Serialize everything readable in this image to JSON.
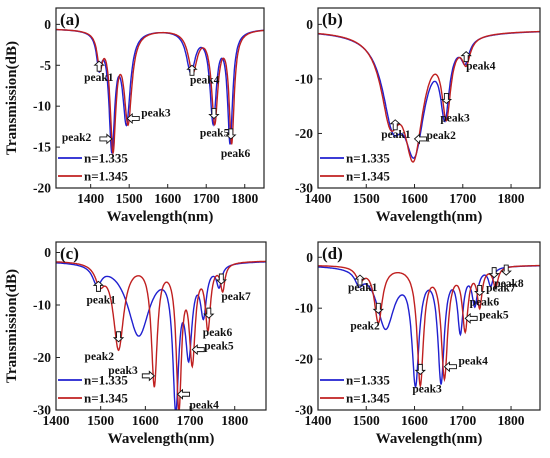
{
  "chart_data": [
    {
      "panel_label": "(a)",
      "type": "line",
      "xlabel": "Wavelength(nm)",
      "ylabel": "Transmission(dB)",
      "xlim": [
        1310,
        1850
      ],
      "ylim": [
        -20,
        2
      ],
      "xticks": [
        1400,
        1500,
        1600,
        1700,
        1800
      ],
      "yticks": [
        0,
        -5,
        -10,
        -15,
        -20
      ],
      "legend": [
        "n=1.335",
        "n=1.345"
      ],
      "legend_position": "bottom-left",
      "series": [
        {
          "name": "n=1.335",
          "color": "#2020d0",
          "baseline": -0.5,
          "dips": [
            [
              1422,
              4.0,
              8
            ],
            [
              1455,
              14.0,
              9
            ],
            [
              1493,
              11.0,
              12
            ],
            [
              1660,
              5.0,
              14
            ],
            [
              1718,
              11.0,
              10
            ],
            [
              1762,
              13.5,
              8
            ]
          ]
        },
        {
          "name": "n=1.345",
          "color": "#c02020",
          "baseline": -0.5,
          "dips": [
            [
              1424,
              4.0,
              8
            ],
            [
              1458,
              14.0,
              9
            ],
            [
              1497,
              11.0,
              12
            ],
            [
              1665,
              5.0,
              14
            ],
            [
              1722,
              11.0,
              10
            ],
            [
              1766,
              13.5,
              8
            ]
          ]
        }
      ],
      "annotations": [
        {
          "text": "peak1",
          "x": 1422,
          "y": -4.5
        },
        {
          "text": "peak2",
          "x": 1455,
          "y": -14.0
        },
        {
          "text": "peak3",
          "x": 1495,
          "y": -11.5
        },
        {
          "text": "peak4",
          "x": 1663,
          "y": -5.0
        },
        {
          "text": "peak5",
          "x": 1720,
          "y": -11.5
        },
        {
          "text": "peak6",
          "x": 1764,
          "y": -14.0
        }
      ]
    },
    {
      "panel_label": "(b)",
      "type": "line",
      "xlabel": "Wavelength(nm)",
      "ylabel": "",
      "xlim": [
        1400,
        1860
      ],
      "ylim": [
        -30,
        3
      ],
      "xticks": [
        1400,
        1500,
        1600,
        1700,
        1800
      ],
      "yticks": [
        0,
        -10,
        -20,
        -30
      ],
      "legend": [
        "n=1.335",
        "n=1.345"
      ],
      "legend_position": "bottom-left",
      "series": [
        {
          "name": "n=1.335",
          "color": "#2020d0",
          "baseline": -1.0,
          "dips": [
            [
              1555,
              14.0,
              26
            ],
            [
              1600,
              19.5,
              26
            ],
            [
              1663,
              13.0,
              11
            ],
            [
              1705,
              4.0,
              10
            ]
          ]
        },
        {
          "name": "n=1.345",
          "color": "#c02020",
          "baseline": -1.0,
          "dips": [
            [
              1550,
              14.0,
              24
            ],
            [
              1598,
              21.0,
              24
            ],
            [
              1666,
              13.5,
              11
            ],
            [
              1707,
              4.5,
              10
            ]
          ]
        }
      ],
      "annotations": [
        {
          "text": "peak1",
          "x": 1560,
          "y": -17.5
        },
        {
          "text": "peak2",
          "x": 1600,
          "y": -21.0
        },
        {
          "text": "peak3",
          "x": 1666,
          "y": -14.5
        },
        {
          "text": "peak4",
          "x": 1707,
          "y": -5.0
        }
      ]
    },
    {
      "panel_label": "(c)",
      "type": "line",
      "xlabel": "Wavelength(nm)",
      "ylabel": "Transmission(dB)",
      "xlim": [
        1400,
        1870
      ],
      "ylim": [
        -30,
        2
      ],
      "xticks": [
        1400,
        1500,
        1600,
        1700,
        1800
      ],
      "yticks": [
        0,
        -10,
        -20,
        -30
      ],
      "legend": [
        "n=1.335",
        "n=1.345"
      ],
      "legend_position": "bottom-left",
      "series": [
        {
          "name": "n=1.335",
          "color": "#2020d0",
          "baseline": -1.5,
          "dips": [
            [
              1492,
              3.5,
              12
            ],
            [
              1585,
              14.0,
              30
            ],
            [
              1668,
              26.0,
              8
            ],
            [
              1697,
              16.0,
              9
            ],
            [
              1730,
              9.0,
              8
            ],
            [
              1765,
              4.0,
              7
            ]
          ]
        },
        {
          "name": "n=1.345",
          "color": "#c02020",
          "baseline": -1.5,
          "dips": [
            [
              1498,
              3.5,
              12
            ],
            [
              1540,
              16.5,
              14
            ],
            [
              1620,
              23.0,
              8
            ],
            [
              1675,
              27.0,
              7
            ],
            [
              1705,
              18.0,
              8
            ],
            [
              1740,
              12.0,
              7
            ],
            [
              1773,
              5.0,
              6
            ]
          ]
        }
      ],
      "annotations": [
        {
          "text": "peak1",
          "x": 1495,
          "y": -5.5
        },
        {
          "text": "peak2",
          "x": 1540,
          "y": -17.0
        },
        {
          "text": "peak3",
          "x": 1620,
          "y": -23.5
        },
        {
          "text": "peak4",
          "x": 1672,
          "y": -27.0
        },
        {
          "text": "peak5",
          "x": 1705,
          "y": -18.5
        },
        {
          "text": "peak6",
          "x": 1742,
          "y": -12.5
        },
        {
          "text": "peak7",
          "x": 1770,
          "y": -6.0
        }
      ]
    },
    {
      "panel_label": "(d)",
      "type": "line",
      "xlabel": "Wavelength(nm)",
      "ylabel": "",
      "xlim": [
        1400,
        1860
      ],
      "ylim": [
        -30,
        3
      ],
      "xticks": [
        1400,
        1500,
        1600,
        1700,
        1800
      ],
      "yticks": [
        0,
        -10,
        -20,
        -30
      ],
      "legend": [
        "n=1.335",
        "n=1.345"
      ],
      "legend_position": "bottom-left",
      "series": [
        {
          "name": "n=1.335",
          "color": "#2020d0",
          "baseline": -1.5,
          "dips": [
            [
              1485,
              2.5,
              10
            ],
            [
              1540,
              12.0,
              22
            ],
            [
              1602,
              22.0,
              9
            ],
            [
              1655,
              22.0,
              8
            ],
            [
              1695,
              12.0,
              7
            ],
            [
              1725,
              7.0,
              7
            ],
            [
              1758,
              3.5,
              6
            ]
          ]
        },
        {
          "name": "n=1.345",
          "color": "#c02020",
          "baseline": -1.5,
          "dips": [
            [
              1487,
              2.5,
              10
            ],
            [
              1525,
              11.0,
              10
            ],
            [
              1612,
              23.0,
              8
            ],
            [
              1662,
              21.5,
              8
            ],
            [
              1705,
              12.0,
              7
            ],
            [
              1735,
              7.5,
              6
            ],
            [
              1768,
              4.0,
              6
            ]
          ]
        }
      ],
      "annotations": [
        {
          "text": "peak1",
          "x": 1487,
          "y": -3.5
        },
        {
          "text": "peak2",
          "x": 1525,
          "y": -11.0
        },
        {
          "text": "peak3",
          "x": 1612,
          "y": -23.0
        },
        {
          "text": "peak4",
          "x": 1662,
          "y": -21.5
        },
        {
          "text": "peak5",
          "x": 1705,
          "y": -12.0
        },
        {
          "text": "peak6",
          "x": 1735,
          "y": -7.5
        },
        {
          "text": "peak7",
          "x": 1765,
          "y": -4.0
        },
        {
          "text": "peak8",
          "x": 1790,
          "y": -3.5
        }
      ]
    }
  ]
}
